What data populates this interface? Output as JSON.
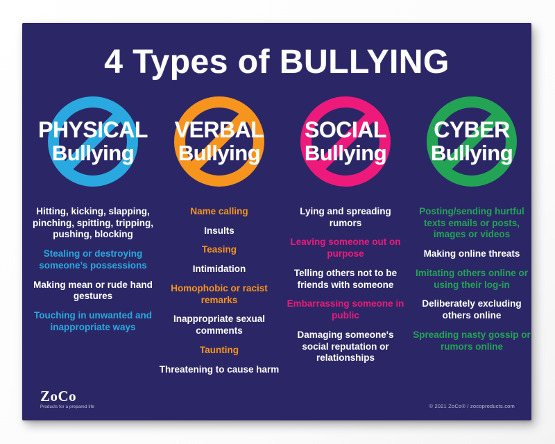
{
  "poster": {
    "background_color": "#2b2766",
    "title": "4 Types of BULLYING",
    "columns": [
      {
        "id": "physical",
        "name": "PHYSICAL",
        "subtitle": "Bullying",
        "accent_color": "#29a9e0",
        "symbol": "no-symbol-icon",
        "items": [
          {
            "text": "Hitting, kicking, slapping, pinching, spitting, tripping, pushing, blocking",
            "color": "white"
          },
          {
            "text": "Stealing or destroying someone’s possessions",
            "color": "accent"
          },
          {
            "text": "Making mean or rude hand gestures",
            "color": "white"
          },
          {
            "text": "Touching in unwanted and inappropriate ways",
            "color": "accent"
          }
        ]
      },
      {
        "id": "verbal",
        "name": "VERBAL",
        "subtitle": "Bullying",
        "accent_color": "#f7941d",
        "symbol": "no-symbol-icon",
        "items": [
          {
            "text": "Name calling",
            "color": "accent"
          },
          {
            "text": "Insults",
            "color": "white"
          },
          {
            "text": "Teasing",
            "color": "accent"
          },
          {
            "text": "Intimidation",
            "color": "white"
          },
          {
            "text": "Homophobic or racist remarks",
            "color": "accent"
          },
          {
            "text": "Inappropriate sexual comments",
            "color": "white"
          },
          {
            "text": "Taunting",
            "color": "accent"
          },
          {
            "text": "Threatening to cause harm",
            "color": "white"
          }
        ]
      },
      {
        "id": "social",
        "name": "SOCIAL",
        "subtitle": "Bullying",
        "accent_color": "#ed1a7b",
        "symbol": "no-symbol-icon",
        "items": [
          {
            "text": "Lying and spreading rumors",
            "color": "white"
          },
          {
            "text": "Leaving someone out on purpose",
            "color": "accent"
          },
          {
            "text": "Telling others not to be friends with someone",
            "color": "white"
          },
          {
            "text": "Embarrassing someone in public",
            "color": "accent"
          },
          {
            "text": "Damaging someone's social reputation or relationships",
            "color": "white"
          }
        ]
      },
      {
        "id": "cyber",
        "name": "CYBER",
        "subtitle": "Bullying",
        "accent_color": "#23a455",
        "symbol": "no-symbol-icon",
        "items": [
          {
            "text": "Posting/sending hurtful texts emails or posts, images or videos",
            "color": "accent"
          },
          {
            "text": "Making online threats",
            "color": "white"
          },
          {
            "text": "Imitating others online or using their log-in",
            "color": "accent"
          },
          {
            "text": "Deliberately excluding others online",
            "color": "white"
          },
          {
            "text": "Spreading nasty gossip or rumors online",
            "color": "accent"
          }
        ]
      }
    ],
    "footer": {
      "logo_text": "ZoCo",
      "logo_tagline": "Products for a prepared life",
      "copyright": "© 2021 ZoCo® / zocoproducts.com"
    }
  }
}
